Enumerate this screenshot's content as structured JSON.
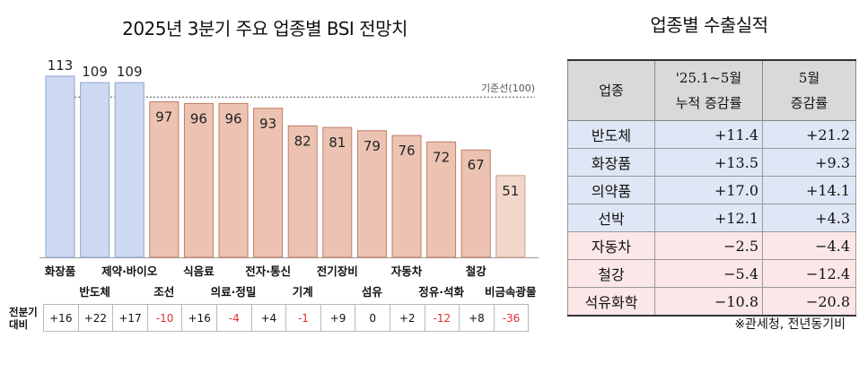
{
  "chart_data": {
    "type": "bar",
    "title": "2025년 3분기 주요 업종별 BSI 전망치",
    "categories": [
      "화장품",
      "반도체",
      "제약·바이오",
      "조선",
      "식음료",
      "의료·정밀",
      "전자·통신",
      "기계",
      "전기장비",
      "섬유",
      "자동차",
      "정유·석화",
      "철강",
      "비금속광물"
    ],
    "values": [
      113,
      109,
      109,
      97,
      96,
      96,
      93,
      82,
      81,
      79,
      76,
      72,
      67,
      51
    ],
    "reference_line": {
      "value": 100,
      "label": "기준선(100)"
    },
    "ylim": [
      0,
      120
    ],
    "colors": {
      "above_fill": "#cdd9f0",
      "above_stroke": "#8fa4d0",
      "below_fill": "#ecc3b3",
      "below_stroke": "#c07a62",
      "last_fill": "#f3d6cb",
      "last_stroke": "#cf9a88"
    },
    "change_row": {
      "label_line1": "전분기",
      "label_line2": "대비",
      "values": [
        "+16",
        "+22",
        "+17",
        "-10",
        "+16",
        "-4",
        "+4",
        "-1",
        "+9",
        "0",
        "+2",
        "-12",
        "+8",
        "-36"
      ]
    }
  },
  "export_table": {
    "title": "업종별 수출실적",
    "headers": {
      "industry": "업종",
      "cumulative_line1": "'25.1~5월",
      "cumulative_line2": "누적 증감률",
      "may_line1": "5월",
      "may_line2": "증감률"
    },
    "rows": [
      {
        "industry": "반도체",
        "cumulative": "+11.4",
        "may": "+21.2",
        "tone": "pos"
      },
      {
        "industry": "화장품",
        "cumulative": "+13.5",
        "may": "+9.3",
        "tone": "pos"
      },
      {
        "industry": "의약품",
        "cumulative": "+17.0",
        "may": "+14.1",
        "tone": "pos"
      },
      {
        "industry": "선박",
        "cumulative": "+12.1",
        "may": "+4.3",
        "tone": "pos"
      },
      {
        "industry": "자동차",
        "cumulative": "−2.5",
        "may": "−4.4",
        "tone": "neg"
      },
      {
        "industry": "철강",
        "cumulative": "−5.4",
        "may": "−12.4",
        "tone": "neg"
      },
      {
        "industry": "석유화학",
        "cumulative": "−10.8",
        "may": "−20.8",
        "tone": "neg"
      }
    ],
    "source": "※관세청, 전년동기비"
  }
}
